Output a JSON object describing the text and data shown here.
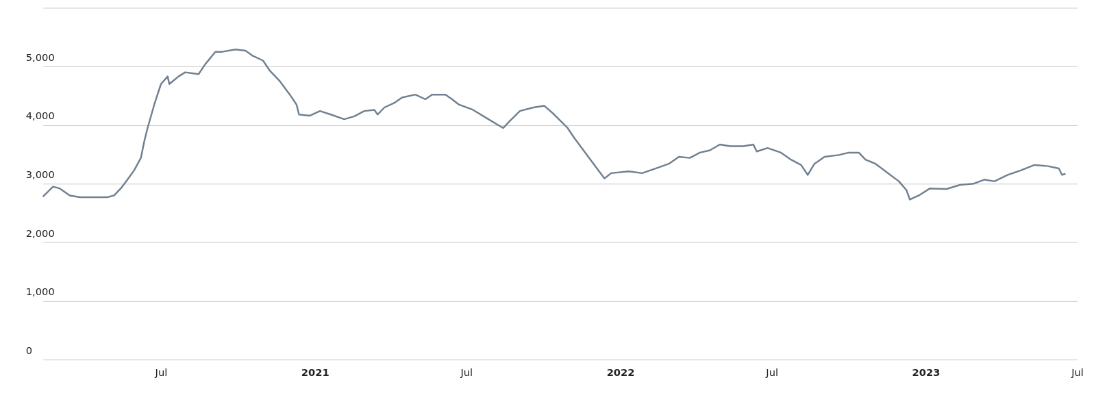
{
  "chart_data": {
    "type": "line",
    "x": [
      "2020-02-11",
      "2020-02-23",
      "2020-03-02",
      "2020-03-14",
      "2020-03-26",
      "2020-04-11",
      "2020-04-28",
      "2020-05-06",
      "2020-05-14",
      "2020-05-22",
      "2020-05-30",
      "2020-06-07",
      "2020-06-11",
      "2020-06-15",
      "2020-06-23",
      "2020-07-01",
      "2020-07-09",
      "2020-07-11",
      "2020-07-22",
      "2020-07-30",
      "2020-08-15",
      "2020-08-23",
      "2020-09-04",
      "2020-09-12",
      "2020-09-28",
      "2020-10-10",
      "2020-10-19",
      "2020-10-31",
      "2020-11-08",
      "2020-11-20",
      "2020-12-02",
      "2020-12-10",
      "2020-12-13",
      "2020-12-26",
      "2021-01-07",
      "2021-01-20",
      "2021-02-05",
      "2021-02-17",
      "2021-03-01",
      "2021-03-13",
      "2021-03-17",
      "2021-03-25",
      "2021-04-06",
      "2021-04-15",
      "2021-05-01",
      "2021-05-13",
      "2021-05-21",
      "2021-06-06",
      "2021-06-14",
      "2021-06-22",
      "2021-07-09",
      "2021-07-25",
      "2021-08-14",
      "2021-08-22",
      "2021-09-03",
      "2021-09-19",
      "2021-10-02",
      "2021-10-14",
      "2021-10-30",
      "2021-11-07",
      "2021-11-19",
      "2021-12-01",
      "2021-12-13",
      "2021-12-21",
      "2022-01-11",
      "2022-01-27",
      "2022-02-12",
      "2022-02-28",
      "2022-03-12",
      "2022-03-25",
      "2022-04-06",
      "2022-04-18",
      "2022-04-30",
      "2022-05-12",
      "2022-05-28",
      "2022-06-09",
      "2022-06-13",
      "2022-06-26",
      "2022-07-12",
      "2022-07-24",
      "2022-08-05",
      "2022-08-13",
      "2022-08-21",
      "2022-09-02",
      "2022-09-19",
      "2022-10-01",
      "2022-10-13",
      "2022-10-21",
      "2022-11-02",
      "2022-11-14",
      "2022-11-30",
      "2022-12-09",
      "2022-12-13",
      "2022-12-25",
      "2023-01-06",
      "2023-01-26",
      "2023-02-11",
      "2023-02-27",
      "2023-03-12",
      "2023-03-24",
      "2023-04-09",
      "2023-04-25",
      "2023-05-11",
      "2023-05-27",
      "2023-06-09",
      "2023-06-13",
      "2023-06-17"
    ],
    "series": [
      {
        "color": "#708090",
        "values": [
          2780,
          2950,
          2920,
          2800,
          2770,
          2770,
          2770,
          2800,
          2920,
          3070,
          3230,
          3440,
          3720,
          3950,
          4350,
          4700,
          4830,
          4700,
          4830,
          4900,
          4870,
          5040,
          5250,
          5250,
          5290,
          5270,
          5180,
          5100,
          4930,
          4750,
          4520,
          4350,
          4180,
          4160,
          4240,
          4180,
          4100,
          4150,
          4240,
          4260,
          4180,
          4300,
          4380,
          4470,
          4520,
          4440,
          4520,
          4520,
          4440,
          4350,
          4260,
          4120,
          3950,
          4070,
          4240,
          4300,
          4330,
          4180,
          3950,
          3780,
          3550,
          3320,
          3090,
          3180,
          3210,
          3180,
          3260,
          3340,
          3460,
          3440,
          3530,
          3570,
          3670,
          3640,
          3640,
          3670,
          3550,
          3610,
          3530,
          3410,
          3320,
          3150,
          3340,
          3460,
          3490,
          3530,
          3530,
          3410,
          3340,
          3210,
          3040,
          2890,
          2730,
          2810,
          2920,
          2910,
          2980,
          3000,
          3070,
          3040,
          3150,
          3230,
          3320,
          3300,
          3260,
          3150,
          3170
        ]
      }
    ],
    "xlim": [
      "2020-02-11",
      "2023-07-01"
    ],
    "xticks": [
      {
        "value": "2020-07-01",
        "label": "Jul"
      },
      {
        "value": "2021-01-01",
        "label": "2021"
      },
      {
        "value": "2021-07-01",
        "label": "Jul"
      },
      {
        "value": "2022-01-01",
        "label": "2022"
      },
      {
        "value": "2022-07-01",
        "label": "Jul"
      },
      {
        "value": "2023-01-01",
        "label": "2023"
      },
      {
        "value": "2023-07-01",
        "label": "Jul"
      }
    ],
    "ylim": [
      0,
      6000
    ],
    "yticks": [
      0,
      {
        "value": 1000,
        "label": "1,000"
      },
      {
        "value": 2000,
        "label": "2,000"
      },
      {
        "value": 3000,
        "label": "3,000"
      },
      {
        "value": 4000,
        "label": "4,000"
      },
      {
        "value": 5000,
        "label": "5,000"
      },
      {
        "value": 6000,
        "label": null
      }
    ],
    "grid": "y",
    "marker": "none",
    "line_style": "solid"
  }
}
